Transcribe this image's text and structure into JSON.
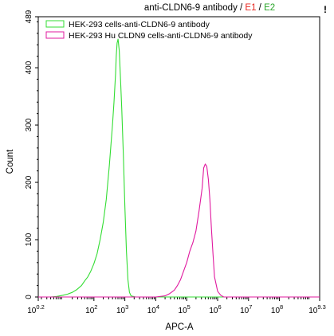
{
  "chart_data": {
    "type": "line",
    "title_parts": [
      {
        "text": "anti-CLDN6-9 antibody / ",
        "color": "#000000"
      },
      {
        "text": "E1",
        "color": "#e8271f"
      },
      {
        "text": " / ",
        "color": "#000000"
      },
      {
        "text": "E2",
        "color": "#2aa52a"
      }
    ],
    "xlabel": "APC-A",
    "ylabel": "Count",
    "x_scale": "log10",
    "xlim": [
      0.2,
      9.3
    ],
    "ylim": [
      0,
      489
    ],
    "y_ticks": [
      0,
      100,
      200,
      300,
      400,
      489
    ],
    "x_ticks": [
      {
        "pos": 0.2,
        "base": "10",
        "exp": "0.2"
      },
      {
        "pos": 2,
        "base": "10",
        "exp": "2"
      },
      {
        "pos": 3,
        "base": "10",
        "exp": "3"
      },
      {
        "pos": 4,
        "base": "10",
        "exp": "4"
      },
      {
        "pos": 5,
        "base": "10",
        "exp": "5"
      },
      {
        "pos": 6,
        "base": "10",
        "exp": "6"
      },
      {
        "pos": 7,
        "base": "10",
        "exp": "7"
      },
      {
        "pos": 8,
        "base": "10",
        "exp": "8"
      },
      {
        "pos": 9.3,
        "base": "10",
        "exp": "9.3"
      }
    ],
    "legend_position": "top-left",
    "series": [
      {
        "name": "HEK-293 cells-anti-CLDN6-9 antibody",
        "color": "#33dd33",
        "points": [
          [
            0.2,
            0
          ],
          [
            0.6,
            0
          ],
          [
            0.8,
            1
          ],
          [
            1.0,
            3
          ],
          [
            1.15,
            5
          ],
          [
            1.3,
            8
          ],
          [
            1.45,
            13
          ],
          [
            1.6,
            20
          ],
          [
            1.7,
            28
          ],
          [
            1.8,
            35
          ],
          [
            1.9,
            45
          ],
          [
            2.0,
            58
          ],
          [
            2.1,
            75
          ],
          [
            2.2,
            100
          ],
          [
            2.3,
            130
          ],
          [
            2.4,
            170
          ],
          [
            2.5,
            230
          ],
          [
            2.6,
            300
          ],
          [
            2.65,
            340
          ],
          [
            2.7,
            390
          ],
          [
            2.72,
            420
          ],
          [
            2.75,
            443
          ],
          [
            2.78,
            450
          ],
          [
            2.82,
            430
          ],
          [
            2.86,
            380
          ],
          [
            2.9,
            330
          ],
          [
            2.95,
            250
          ],
          [
            3.0,
            160
          ],
          [
            3.05,
            80
          ],
          [
            3.1,
            30
          ],
          [
            3.15,
            8
          ],
          [
            3.2,
            2
          ],
          [
            3.35,
            0
          ],
          [
            9.3,
            0
          ]
        ]
      },
      {
        "name": "HEK-293 Hu CLDN9 cells-anti-CLDN6-9 antibody",
        "color": "#e0199f",
        "points": [
          [
            0.2,
            0
          ],
          [
            4.0,
            0
          ],
          [
            4.3,
            2
          ],
          [
            4.45,
            6
          ],
          [
            4.6,
            12
          ],
          [
            4.7,
            20
          ],
          [
            4.8,
            30
          ],
          [
            4.9,
            45
          ],
          [
            5.0,
            60
          ],
          [
            5.1,
            80
          ],
          [
            5.2,
            95
          ],
          [
            5.3,
            115
          ],
          [
            5.4,
            150
          ],
          [
            5.5,
            190
          ],
          [
            5.55,
            225
          ],
          [
            5.6,
            232
          ],
          [
            5.65,
            228
          ],
          [
            5.7,
            205
          ],
          [
            5.75,
            170
          ],
          [
            5.8,
            120
          ],
          [
            5.85,
            75
          ],
          [
            5.9,
            35
          ],
          [
            6.0,
            10
          ],
          [
            6.1,
            3
          ],
          [
            6.2,
            0
          ],
          [
            9.3,
            0
          ]
        ]
      }
    ]
  }
}
